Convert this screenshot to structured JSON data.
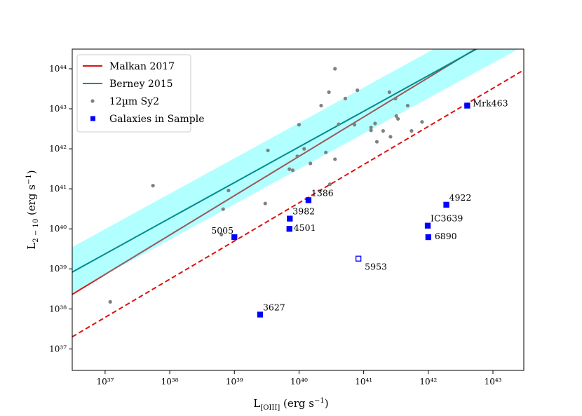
{
  "chart_data": {
    "type": "scatter",
    "xlog": true,
    "ylog": true,
    "xlim": [
      3.1e+36,
      3e+43
    ],
    "ylim": [
      2.9e+36,
      3.1e+44
    ],
    "xticks": [
      {
        "value": 1e+37,
        "label": "10³⁷"
      },
      {
        "value": 1e+38,
        "label": "10³⁸"
      },
      {
        "value": 1e+39,
        "label": "10³⁹"
      },
      {
        "value": 1e+40,
        "label": "10⁴⁰"
      },
      {
        "value": 1e+41,
        "label": "10⁴¹"
      },
      {
        "value": 1e+42,
        "label": "10⁴²"
      },
      {
        "value": 1e+43,
        "label": "10⁴³"
      }
    ],
    "yticks": [
      {
        "value": 1e+37,
        "label": "10³⁷"
      },
      {
        "value": 1e+38,
        "label": "10³⁸"
      },
      {
        "value": 1e+39,
        "label": "10³⁹"
      },
      {
        "value": 1e+40,
        "label": "10⁴⁰"
      },
      {
        "value": 1e+41,
        "label": "10⁴¹"
      },
      {
        "value": 1e+42,
        "label": "10⁴²"
      },
      {
        "value": 1e+43,
        "label": "10⁴³"
      },
      {
        "value": 1e+44,
        "label": "10⁴⁴"
      }
    ],
    "x_label": [
      "L",
      "[OIII]",
      " (erg s",
      "−1",
      ")"
    ],
    "y_label": [
      "L",
      "2 − 10",
      " (erg s",
      "−1",
      ")"
    ],
    "legend": "upper left",
    "series": [
      {
        "name": "Malkan 2017",
        "type": "line",
        "color": "#dd1111",
        "x": [
          3.1e+36,
          3e+43
        ],
        "values": [
          2.3e+38,
          1.7e+45
        ]
      },
      {
        "name": "Berney 2015",
        "type": "line",
        "color": "#008b8b",
        "x": [
          3.1e+36,
          3e+43
        ],
        "values": [
          8.3e+38,
          1.4e+45
        ],
        "band_lower": [
          2.5e+38,
          3.7e+44
        ],
        "band_upper": [
          3.5e+39,
          5.3e+45
        ],
        "band_color": "#00ffff"
      },
      {
        "type": "line",
        "dashed": true,
        "color": "#dd1111",
        "x": [
          3.1e+36,
          3e+43
        ],
        "values": [
          2e+37,
          9.3e+43
        ]
      },
      {
        "name": "12µm Sy2",
        "type": "scatter",
        "marker": "circle",
        "color": "#808080",
        "x": [
          5.5e+37,
          1.2e+37,
          6.7e+38,
          8.1e+38,
          6.3e+38,
          3e+39,
          3.3e+39,
          7.1e+39,
          8e+39,
          9.4e+39,
          1e+40,
          1.2e+40,
          1.5e+40,
          2.2e+40,
          2.6e+40,
          2.9e+40,
          3.6e+40,
          3e+40,
          3.6e+40,
          4.1e+40,
          5.2e+40,
          7.2e+40,
          8e+40,
          1.3e+41,
          1.3e+41,
          1.6e+41,
          1.5e+41,
          2e+41,
          2.5e+41,
          2.6e+41,
          3.1e+41,
          3.2e+41,
          3.4e+41,
          4.8e+41,
          5.5e+41,
          8e+41
        ],
        "values": [
          1.2e+41,
          1.5e+38,
          3.1e+40,
          9.1e+40,
          7.2e+39,
          4.3e+40,
          9.1e+41,
          3.1e+41,
          2.9e+41,
          6.5e+41,
          4e+42,
          1e+42,
          4.3e+41,
          1.2e+43,
          8.1e+41,
          2.6e+43,
          5.5e+41,
          1.3e+41,
          1e+44,
          4.1e+42,
          1.8e+43,
          4e+42,
          2.9e+43,
          3.4e+42,
          2.9e+42,
          1.5e+42,
          4.3e+42,
          2.8e+42,
          2.6e+43,
          2e+42,
          1.8e+43,
          6.6e+42,
          5.6e+42,
          1.2e+43,
          2.8e+42,
          4.7e+42
        ]
      },
      {
        "name": "Galaxies in Sample",
        "type": "scatter",
        "marker": "square",
        "color": "#0000ff",
        "x": [
          4e+42,
          1.9e+42,
          9.8e+41,
          1e+42,
          8.3e+40,
          1.4e+40,
          7.2e+39,
          7.1e+39,
          1e+39,
          2.5e+39
        ],
        "values": [
          1.2e+43,
          4e+40,
          1.2e+40,
          6.2e+39,
          1.8e+39,
          5.2e+40,
          1.8e+40,
          1e+40,
          6.2e+39,
          7.2e+37
        ],
        "labels": [
          "Mrk463",
          "4922",
          "IC3639",
          "6890",
          "5953",
          "1386",
          "3982",
          "4501",
          "5005",
          "3627"
        ],
        "open": [
          false,
          false,
          false,
          false,
          true,
          false,
          false,
          false,
          false,
          false
        ]
      }
    ]
  }
}
